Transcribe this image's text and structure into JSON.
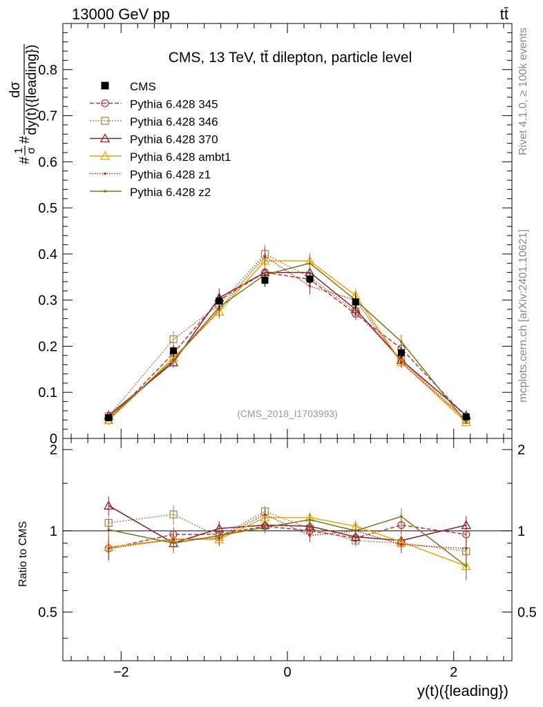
{
  "header": {
    "energy_label": "13000 GeV pp",
    "process_label": "tt̄"
  },
  "side_labels": {
    "rivet": "Rivet 4.1.0, ≥ 100k events",
    "mcplots": "mcplots.cern.ch [arXiv:2401.10621]"
  },
  "chart_data": [
    {
      "type": "line",
      "panel": "main",
      "title": "CMS, 13 TeV, tt̄ dilepton, particle level",
      "watermark": "(CMS_2018_I1703993)",
      "ylabel": "#frac{1}{σ}#frac{dσ}{dy(t)({leading})}",
      "ylabel_parts": {
        "top": "dσ",
        "bottom": "dy(t)({leading})",
        "lead_num": "1",
        "lead_den": "σ",
        "hash": "#"
      },
      "xlim": [
        -2.7,
        2.7
      ],
      "ylim": [
        0,
        0.9
      ],
      "yticks": [
        0,
        0.1,
        0.2,
        0.3,
        0.4,
        0.5,
        0.6,
        0.7,
        0.8
      ],
      "ytick_labels": [
        "0",
        "0.1",
        "0.2",
        "0.3",
        "0.4",
        "0.5",
        "0.6",
        "0.7",
        "0.8"
      ],
      "x": [
        -2.15,
        -1.37,
        -0.82,
        -0.27,
        0.27,
        0.82,
        1.37,
        2.15
      ],
      "data_series": {
        "name": "CMS",
        "color": "#000000",
        "values": [
          0.045,
          0.19,
          0.298,
          0.343,
          0.346,
          0.296,
          0.186,
          0.047
        ],
        "errors": [
          0.004,
          0.012,
          0.016,
          0.014,
          0.014,
          0.016,
          0.012,
          0.004
        ]
      },
      "series": [
        {
          "name": "Pythia 6.428 345",
          "color": "#b5353b",
          "marker": "circle",
          "dash": "6,3",
          "values": [
            0.039,
            0.185,
            0.3,
            0.36,
            0.345,
            0.27,
            0.195,
            0.046
          ],
          "errors": [
            0.003,
            0.012,
            0.015,
            0.016,
            0.015,
            0.014,
            0.012,
            0.004
          ]
        },
        {
          "name": "Pythia 6.428 346",
          "color": "#a8884a",
          "marker": "square",
          "dash": "2,2",
          "values": [
            0.048,
            0.215,
            0.29,
            0.4,
            0.35,
            0.275,
            0.17,
            0.04
          ],
          "errors": [
            0.004,
            0.018,
            0.016,
            0.02,
            0.016,
            0.015,
            0.012,
            0.004
          ]
        },
        {
          "name": "Pythia 6.428 370",
          "color": "#8b1a2e",
          "marker": "triangle",
          "dash": "",
          "values": [
            0.05,
            0.165,
            0.305,
            0.36,
            0.36,
            0.28,
            0.17,
            0.05
          ],
          "errors": [
            0.004,
            0.012,
            0.02,
            0.018,
            0.017,
            0.015,
            0.012,
            0.004
          ]
        },
        {
          "name": "Pythia 6.428 ambt1",
          "color": "#f0a500",
          "marker": "triangle",
          "dash": "",
          "values": [
            0.04,
            0.175,
            0.275,
            0.385,
            0.385,
            0.31,
            0.165,
            0.035
          ],
          "errors": [
            0.004,
            0.014,
            0.016,
            0.02,
            0.018,
            0.016,
            0.012,
            0.004
          ]
        },
        {
          "name": "Pythia 6.428 z1",
          "color": "#c0241b",
          "marker": "dot",
          "dash": "1.5,2",
          "values": [
            0.04,
            0.17,
            0.28,
            0.395,
            0.33,
            0.3,
            0.165,
            0.04
          ],
          "errors": [
            0.004,
            0.014,
            0.018,
            0.02,
            0.018,
            0.018,
            0.012,
            0.004
          ]
        },
        {
          "name": "Pythia 6.428 z2",
          "color": "#7b7416",
          "marker": "dot",
          "dash": "",
          "values": [
            0.045,
            0.17,
            0.285,
            0.355,
            0.38,
            0.3,
            0.21,
            0.035
          ],
          "errors": [
            0.004,
            0.014,
            0.018,
            0.018,
            0.02,
            0.016,
            0.015,
            0.004
          ]
        }
      ]
    },
    {
      "type": "line",
      "panel": "ratio",
      "ylabel": "Ratio to CMS",
      "xlabel": "y(t)({leading})",
      "xlim": [
        -2.7,
        2.7
      ],
      "ylim": [
        0.33,
        2.2
      ],
      "xticks": [
        -2,
        0,
        2
      ],
      "xtick_labels": [
        "−2",
        "0",
        "2"
      ],
      "yticks": [
        0.5,
        1,
        2
      ],
      "ytick_labels": [
        "0.5",
        "1",
        "2"
      ],
      "reference": 1,
      "x": [
        -2.15,
        -1.37,
        -0.82,
        -0.27,
        0.27,
        0.82,
        1.37,
        2.15
      ],
      "series": [
        {
          "name": "Pythia 6.428 345",
          "values": [
            0.86,
            0.97,
            0.97,
            1.04,
            1.0,
            0.94,
            1.05,
            0.97
          ]
        },
        {
          "name": "Pythia 6.428 346",
          "values": [
            1.07,
            1.15,
            0.95,
            1.18,
            1.02,
            0.92,
            0.9,
            0.84
          ]
        },
        {
          "name": "Pythia 6.428 370",
          "values": [
            1.24,
            0.9,
            1.02,
            1.05,
            1.04,
            0.95,
            0.92,
            1.05
          ]
        },
        {
          "name": "Pythia 6.428 ambt1",
          "values": [
            0.87,
            0.93,
            0.93,
            1.12,
            1.12,
            1.04,
            0.91,
            0.74
          ]
        },
        {
          "name": "Pythia 6.428 z1",
          "values": [
            0.86,
            0.93,
            0.94,
            1.15,
            0.96,
            1.0,
            0.89,
            0.86
          ]
        },
        {
          "name": "Pythia 6.428 z2",
          "values": [
            1.01,
            0.9,
            0.96,
            1.03,
            1.1,
            1.0,
            1.13,
            0.74
          ]
        }
      ]
    }
  ]
}
